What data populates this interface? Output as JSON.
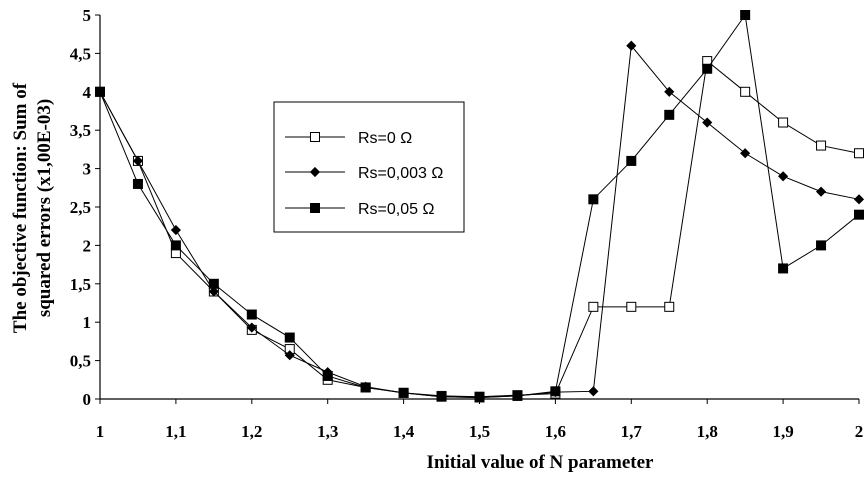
{
  "chart_data": {
    "type": "line",
    "title": "",
    "xlabel": "Initial value of N parameter",
    "ylabel_line1": "The objective function: Sum of",
    "ylabel_line2": "squared errors (x1,00E-03)",
    "xlim": [
      1,
      2
    ],
    "ylim": [
      0,
      5
    ],
    "x_ticks": [
      "1",
      "1,1",
      "1,2",
      "1,3",
      "1,4",
      "1,5",
      "1,6",
      "1,7",
      "1,8",
      "1,9",
      "2"
    ],
    "y_ticks": [
      "0",
      "0,5",
      "1",
      "1,5",
      "2",
      "2,5",
      "3",
      "3,5",
      "4",
      "4,5",
      "5"
    ],
    "grid": false,
    "legend_position": "upper-center-left",
    "x": [
      1,
      1.05,
      1.1,
      1.15,
      1.2,
      1.25,
      1.3,
      1.35,
      1.4,
      1.45,
      1.5,
      1.55,
      1.6,
      1.65,
      1.7,
      1.75,
      1.8,
      1.85,
      1.9,
      1.95,
      2
    ],
    "series": [
      {
        "name": "Rs=0 Ω",
        "marker": "open-square",
        "values": [
          4.0,
          3.1,
          1.9,
          1.4,
          0.9,
          0.65,
          0.25,
          0.15,
          0.08,
          0.04,
          0.03,
          0.05,
          0.07,
          1.2,
          1.2,
          1.2,
          4.4,
          4.0,
          3.6,
          3.3,
          3.2
        ]
      },
      {
        "name": "Rs=0,003 Ω",
        "marker": "diamond",
        "values": [
          4.0,
          3.1,
          2.2,
          1.4,
          0.93,
          0.57,
          0.35,
          0.16,
          0.08,
          0.03,
          0.02,
          0.04,
          0.09,
          0.1,
          4.6,
          4.0,
          3.6,
          3.2,
          2.9,
          2.7,
          2.6
        ]
      },
      {
        "name": "Rs=0,05 Ω",
        "marker": "filled-square",
        "values": [
          4.0,
          2.8,
          2.0,
          1.5,
          1.1,
          0.8,
          0.3,
          0.15,
          0.08,
          0.03,
          0.02,
          0.04,
          0.1,
          2.6,
          3.1,
          3.7,
          4.3,
          5.0,
          1.7,
          2.0,
          2.4
        ]
      }
    ]
  }
}
